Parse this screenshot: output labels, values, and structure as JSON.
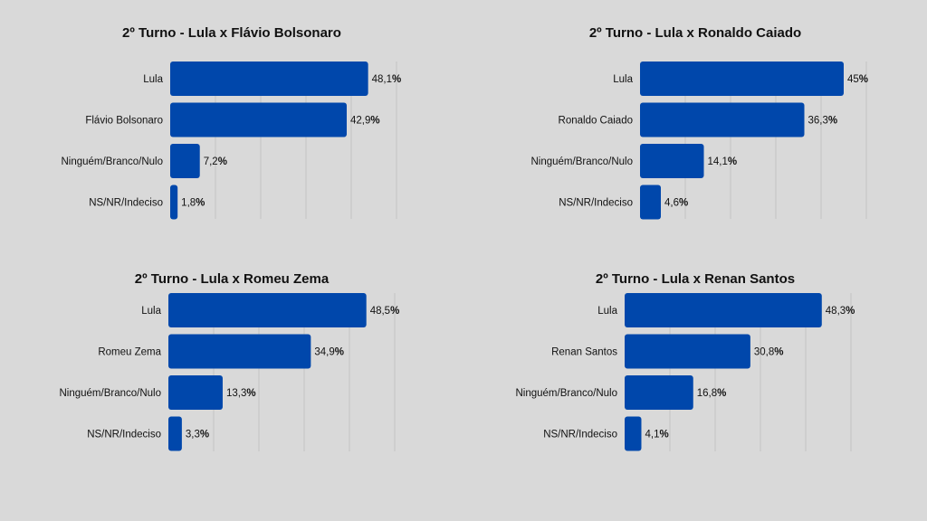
{
  "colors": {
    "background": "#d9d9d9",
    "bar": "#0047ab",
    "grid": "#c4c4c4",
    "text": "#111111"
  },
  "chart_data": [
    {
      "type": "bar",
      "orientation": "horizontal",
      "title": "2º Turno - Lula x Flávio Bolsonaro",
      "categories": [
        "Lula",
        "Flávio Bolsonaro",
        "Ninguém/Branco/Nulo",
        "NS/NR/Indeciso"
      ],
      "values": [
        48.1,
        42.9,
        7.2,
        1.8
      ],
      "value_labels": [
        "48,1",
        "42,9",
        "7,2",
        "1,8"
      ],
      "unit": "%",
      "xlim": [
        0,
        55
      ],
      "grid": true
    },
    {
      "type": "bar",
      "orientation": "horizontal",
      "title": "2º Turno - Lula x Ronaldo Caiado",
      "categories": [
        "Lula",
        "Ronaldo Caiado",
        "Ninguém/Branco/Nulo",
        "NS/NR/Indeciso"
      ],
      "values": [
        45,
        36.3,
        14.1,
        4.6
      ],
      "value_labels": [
        "45",
        "36,3",
        "14,1",
        "4,6"
      ],
      "unit": "%",
      "xlim": [
        0,
        50
      ],
      "grid": true
    },
    {
      "type": "bar",
      "orientation": "horizontal",
      "title": "2º Turno - Lula x Romeu Zema",
      "categories": [
        "Lula",
        "Romeu Zema",
        "Ninguém/Branco/Nulo",
        "NS/NR/Indeciso"
      ],
      "values": [
        48.5,
        34.9,
        13.3,
        3.3
      ],
      "value_labels": [
        "48,5",
        "34,9",
        "13,3",
        "3,3"
      ],
      "unit": "%",
      "xlim": [
        0,
        55
      ],
      "grid": true
    },
    {
      "type": "bar",
      "orientation": "horizontal",
      "title": "2º Turno - Lula x Renan Santos",
      "categories": [
        "Lula",
        "Renan Santos",
        "Ninguém/Branco/Nulo",
        "NS/NR/Indeciso"
      ],
      "values": [
        48.3,
        30.8,
        16.8,
        4.1
      ],
      "value_labels": [
        "48,3",
        "30,8",
        "16,8",
        "4,1"
      ],
      "unit": "%",
      "xlim": [
        0,
        55
      ],
      "grid": true
    }
  ]
}
